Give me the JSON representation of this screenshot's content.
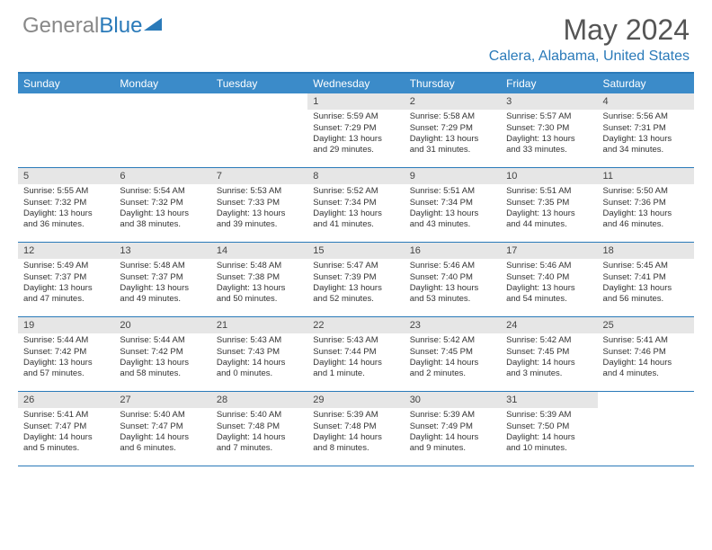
{
  "logo": {
    "text1": "General",
    "text2": "Blue"
  },
  "title": "May 2024",
  "location": "Calera, Alabama, United States",
  "colors": {
    "header_bg": "#3b8bc9",
    "accent": "#2a7ab9",
    "daynum_bg": "#e6e6e6",
    "text": "#333333",
    "logo_gray": "#888888"
  },
  "day_headers": [
    "Sunday",
    "Monday",
    "Tuesday",
    "Wednesday",
    "Thursday",
    "Friday",
    "Saturday"
  ],
  "weeks": [
    [
      {
        "n": "",
        "lines": []
      },
      {
        "n": "",
        "lines": []
      },
      {
        "n": "",
        "lines": []
      },
      {
        "n": "1",
        "lines": [
          "Sunrise: 5:59 AM",
          "Sunset: 7:29 PM",
          "Daylight: 13 hours",
          "and 29 minutes."
        ]
      },
      {
        "n": "2",
        "lines": [
          "Sunrise: 5:58 AM",
          "Sunset: 7:29 PM",
          "Daylight: 13 hours",
          "and 31 minutes."
        ]
      },
      {
        "n": "3",
        "lines": [
          "Sunrise: 5:57 AM",
          "Sunset: 7:30 PM",
          "Daylight: 13 hours",
          "and 33 minutes."
        ]
      },
      {
        "n": "4",
        "lines": [
          "Sunrise: 5:56 AM",
          "Sunset: 7:31 PM",
          "Daylight: 13 hours",
          "and 34 minutes."
        ]
      }
    ],
    [
      {
        "n": "5",
        "lines": [
          "Sunrise: 5:55 AM",
          "Sunset: 7:32 PM",
          "Daylight: 13 hours",
          "and 36 minutes."
        ]
      },
      {
        "n": "6",
        "lines": [
          "Sunrise: 5:54 AM",
          "Sunset: 7:32 PM",
          "Daylight: 13 hours",
          "and 38 minutes."
        ]
      },
      {
        "n": "7",
        "lines": [
          "Sunrise: 5:53 AM",
          "Sunset: 7:33 PM",
          "Daylight: 13 hours",
          "and 39 minutes."
        ]
      },
      {
        "n": "8",
        "lines": [
          "Sunrise: 5:52 AM",
          "Sunset: 7:34 PM",
          "Daylight: 13 hours",
          "and 41 minutes."
        ]
      },
      {
        "n": "9",
        "lines": [
          "Sunrise: 5:51 AM",
          "Sunset: 7:34 PM",
          "Daylight: 13 hours",
          "and 43 minutes."
        ]
      },
      {
        "n": "10",
        "lines": [
          "Sunrise: 5:51 AM",
          "Sunset: 7:35 PM",
          "Daylight: 13 hours",
          "and 44 minutes."
        ]
      },
      {
        "n": "11",
        "lines": [
          "Sunrise: 5:50 AM",
          "Sunset: 7:36 PM",
          "Daylight: 13 hours",
          "and 46 minutes."
        ]
      }
    ],
    [
      {
        "n": "12",
        "lines": [
          "Sunrise: 5:49 AM",
          "Sunset: 7:37 PM",
          "Daylight: 13 hours",
          "and 47 minutes."
        ]
      },
      {
        "n": "13",
        "lines": [
          "Sunrise: 5:48 AM",
          "Sunset: 7:37 PM",
          "Daylight: 13 hours",
          "and 49 minutes."
        ]
      },
      {
        "n": "14",
        "lines": [
          "Sunrise: 5:48 AM",
          "Sunset: 7:38 PM",
          "Daylight: 13 hours",
          "and 50 minutes."
        ]
      },
      {
        "n": "15",
        "lines": [
          "Sunrise: 5:47 AM",
          "Sunset: 7:39 PM",
          "Daylight: 13 hours",
          "and 52 minutes."
        ]
      },
      {
        "n": "16",
        "lines": [
          "Sunrise: 5:46 AM",
          "Sunset: 7:40 PM",
          "Daylight: 13 hours",
          "and 53 minutes."
        ]
      },
      {
        "n": "17",
        "lines": [
          "Sunrise: 5:46 AM",
          "Sunset: 7:40 PM",
          "Daylight: 13 hours",
          "and 54 minutes."
        ]
      },
      {
        "n": "18",
        "lines": [
          "Sunrise: 5:45 AM",
          "Sunset: 7:41 PM",
          "Daylight: 13 hours",
          "and 56 minutes."
        ]
      }
    ],
    [
      {
        "n": "19",
        "lines": [
          "Sunrise: 5:44 AM",
          "Sunset: 7:42 PM",
          "Daylight: 13 hours",
          "and 57 minutes."
        ]
      },
      {
        "n": "20",
        "lines": [
          "Sunrise: 5:44 AM",
          "Sunset: 7:42 PM",
          "Daylight: 13 hours",
          "and 58 minutes."
        ]
      },
      {
        "n": "21",
        "lines": [
          "Sunrise: 5:43 AM",
          "Sunset: 7:43 PM",
          "Daylight: 14 hours",
          "and 0 minutes."
        ]
      },
      {
        "n": "22",
        "lines": [
          "Sunrise: 5:43 AM",
          "Sunset: 7:44 PM",
          "Daylight: 14 hours",
          "and 1 minute."
        ]
      },
      {
        "n": "23",
        "lines": [
          "Sunrise: 5:42 AM",
          "Sunset: 7:45 PM",
          "Daylight: 14 hours",
          "and 2 minutes."
        ]
      },
      {
        "n": "24",
        "lines": [
          "Sunrise: 5:42 AM",
          "Sunset: 7:45 PM",
          "Daylight: 14 hours",
          "and 3 minutes."
        ]
      },
      {
        "n": "25",
        "lines": [
          "Sunrise: 5:41 AM",
          "Sunset: 7:46 PM",
          "Daylight: 14 hours",
          "and 4 minutes."
        ]
      }
    ],
    [
      {
        "n": "26",
        "lines": [
          "Sunrise: 5:41 AM",
          "Sunset: 7:47 PM",
          "Daylight: 14 hours",
          "and 5 minutes."
        ]
      },
      {
        "n": "27",
        "lines": [
          "Sunrise: 5:40 AM",
          "Sunset: 7:47 PM",
          "Daylight: 14 hours",
          "and 6 minutes."
        ]
      },
      {
        "n": "28",
        "lines": [
          "Sunrise: 5:40 AM",
          "Sunset: 7:48 PM",
          "Daylight: 14 hours",
          "and 7 minutes."
        ]
      },
      {
        "n": "29",
        "lines": [
          "Sunrise: 5:39 AM",
          "Sunset: 7:48 PM",
          "Daylight: 14 hours",
          "and 8 minutes."
        ]
      },
      {
        "n": "30",
        "lines": [
          "Sunrise: 5:39 AM",
          "Sunset: 7:49 PM",
          "Daylight: 14 hours",
          "and 9 minutes."
        ]
      },
      {
        "n": "31",
        "lines": [
          "Sunrise: 5:39 AM",
          "Sunset: 7:50 PM",
          "Daylight: 14 hours",
          "and 10 minutes."
        ]
      },
      {
        "n": "",
        "lines": []
      }
    ]
  ]
}
